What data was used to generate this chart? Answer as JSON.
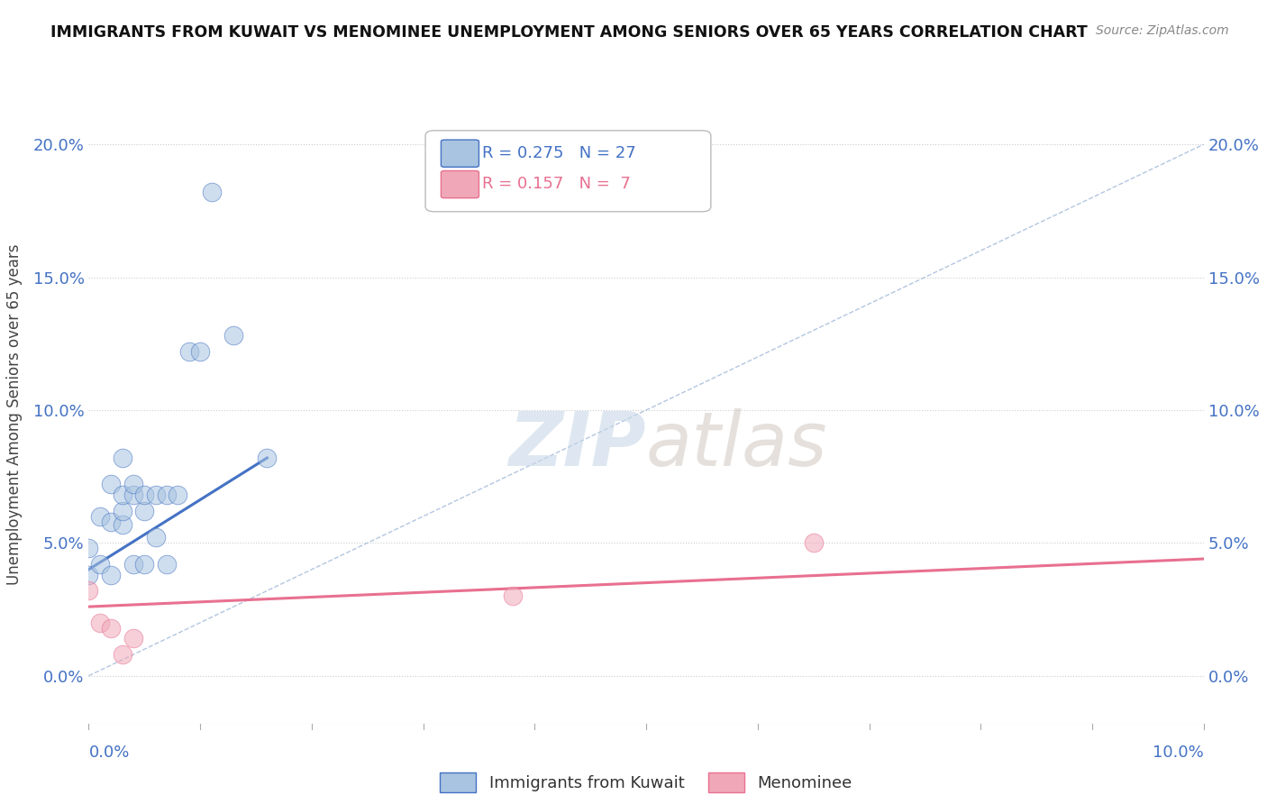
{
  "title": "IMMIGRANTS FROM KUWAIT VS MENOMINEE UNEMPLOYMENT AMONG SENIORS OVER 65 YEARS CORRELATION CHART",
  "source": "Source: ZipAtlas.com",
  "ylabel": "Unemployment Among Seniors over 65 years",
  "ytick_labels": [
    "0.0%",
    "5.0%",
    "10.0%",
    "15.0%",
    "20.0%"
  ],
  "ytick_values": [
    0.0,
    0.05,
    0.1,
    0.15,
    0.2
  ],
  "xlim": [
    0.0,
    0.1
  ],
  "ylim": [
    -0.018,
    0.215
  ],
  "legend1_R": "0.275",
  "legend1_N": "27",
  "legend2_R": "0.157",
  "legend2_N": "7",
  "color_kuwait": "#a8c4e0",
  "color_menominee": "#f0a8b8",
  "color_kuwait_line": "#4472c4",
  "color_menominee_line": "#e87090",
  "color_diag_line": "#a0b8d8",
  "watermark_zip": "ZIP",
  "watermark_atlas": "atlas",
  "kuwait_points_x": [
    0.0,
    0.0,
    0.001,
    0.001,
    0.002,
    0.002,
    0.002,
    0.003,
    0.003,
    0.003,
    0.003,
    0.004,
    0.004,
    0.004,
    0.005,
    0.005,
    0.005,
    0.006,
    0.006,
    0.007,
    0.007,
    0.008,
    0.009,
    0.01,
    0.011,
    0.013,
    0.016
  ],
  "kuwait_points_y": [
    0.038,
    0.048,
    0.042,
    0.06,
    0.038,
    0.058,
    0.072,
    0.057,
    0.062,
    0.068,
    0.082,
    0.042,
    0.068,
    0.072,
    0.042,
    0.062,
    0.068,
    0.052,
    0.068,
    0.042,
    0.068,
    0.068,
    0.122,
    0.122,
    0.182,
    0.128,
    0.082
  ],
  "menominee_points_x": [
    0.0,
    0.001,
    0.002,
    0.003,
    0.004,
    0.038,
    0.065
  ],
  "menominee_points_y": [
    0.032,
    0.02,
    0.018,
    0.008,
    0.014,
    0.03,
    0.05
  ],
  "kuwait_trend_x": [
    0.0,
    0.016
  ],
  "kuwait_trend_y": [
    0.04,
    0.082
  ],
  "menominee_trend_x": [
    0.0,
    0.1
  ],
  "menominee_trend_y": [
    0.026,
    0.044
  ],
  "diag_line_x": [
    0.0,
    0.1
  ],
  "diag_line_y": [
    0.0,
    0.2
  ]
}
